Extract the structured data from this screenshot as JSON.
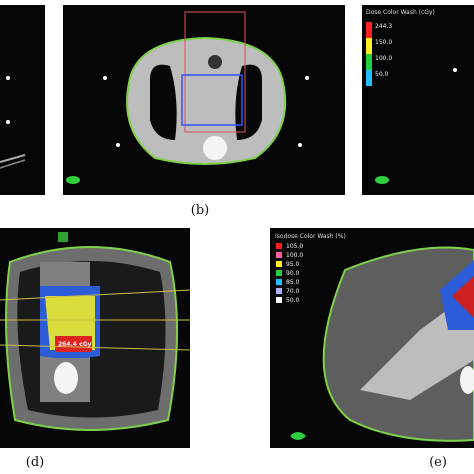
{
  "panels": [
    {
      "caption": "(b)"
    },
    {
      "legend_title": "Dose Color Wash (cGy)",
      "legend_values": [
        "244.3",
        "150.0",
        "100.0",
        "50.0"
      ]
    },
    {
      "caption": "(d)",
      "dose_label": "264.4 cGy"
    },
    {
      "caption": "(e)",
      "legend_title": "Isodose Color Wash (%)",
      "legend_values": [
        "105.0",
        "100.0",
        "95.0",
        "90.0",
        "85.0",
        "70.0",
        "50.0"
      ]
    }
  ]
}
